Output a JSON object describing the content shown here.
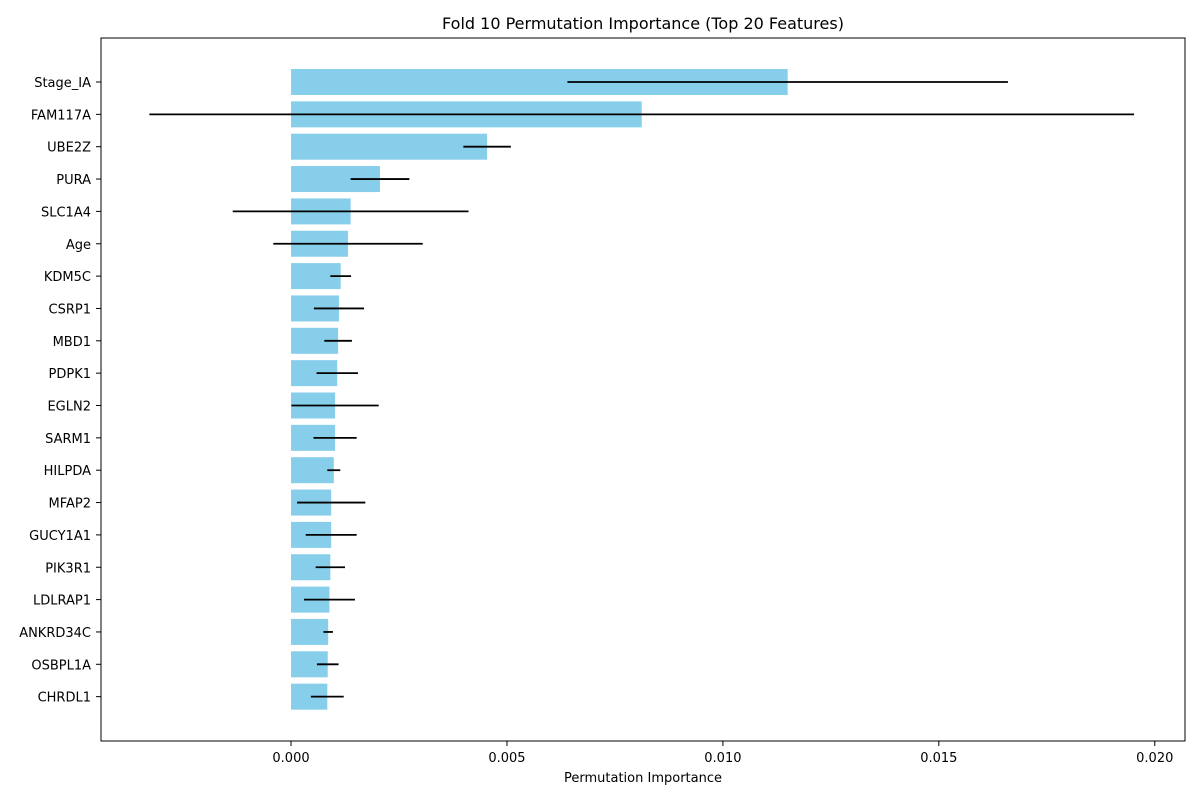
{
  "chart_data": {
    "type": "bar",
    "orientation": "horizontal",
    "title": "Fold 10 Permutation Importance (Top 20 Features)",
    "xlabel": "Permutation Importance",
    "ylabel": "",
    "xlim": [
      -0.0044,
      0.0207
    ],
    "xticks": [
      0.0,
      0.005,
      0.01,
      0.015,
      0.02
    ],
    "xtick_labels": [
      "0.000",
      "0.005",
      "0.010",
      "0.015",
      "0.020"
    ],
    "grid": false,
    "categories": [
      "Stage_IA",
      "FAM117A",
      "UBE2Z",
      "PURA",
      "SLC1A4",
      "Age",
      "KDM5C",
      "CSRP1",
      "MBD1",
      "PDPK1",
      "EGLN2",
      "SARM1",
      "HILPDA",
      "MFAP2",
      "GUCY1A1",
      "PIK3R1",
      "LDLRAP1",
      "ANKRD34C",
      "OSBPL1A",
      "CHRDL1"
    ],
    "values": [
      0.0115,
      0.00812,
      0.00454,
      0.00206,
      0.00138,
      0.00132,
      0.00115,
      0.00111,
      0.00109,
      0.00107,
      0.00102,
      0.00102,
      0.00099,
      0.00093,
      0.00093,
      0.00091,
      0.00089,
      0.00086,
      0.00085,
      0.00084
    ],
    "error": [
      0.0051,
      0.0114,
      0.00055,
      0.00068,
      0.00273,
      0.00173,
      0.00024,
      0.00058,
      0.00032,
      0.00048,
      0.00101,
      0.0005,
      0.00015,
      0.00079,
      0.00059,
      0.00034,
      0.00059,
      0.00011,
      0.00025,
      0.00038
    ],
    "bar_color": "#87ceeb",
    "error_color": "#000000"
  }
}
